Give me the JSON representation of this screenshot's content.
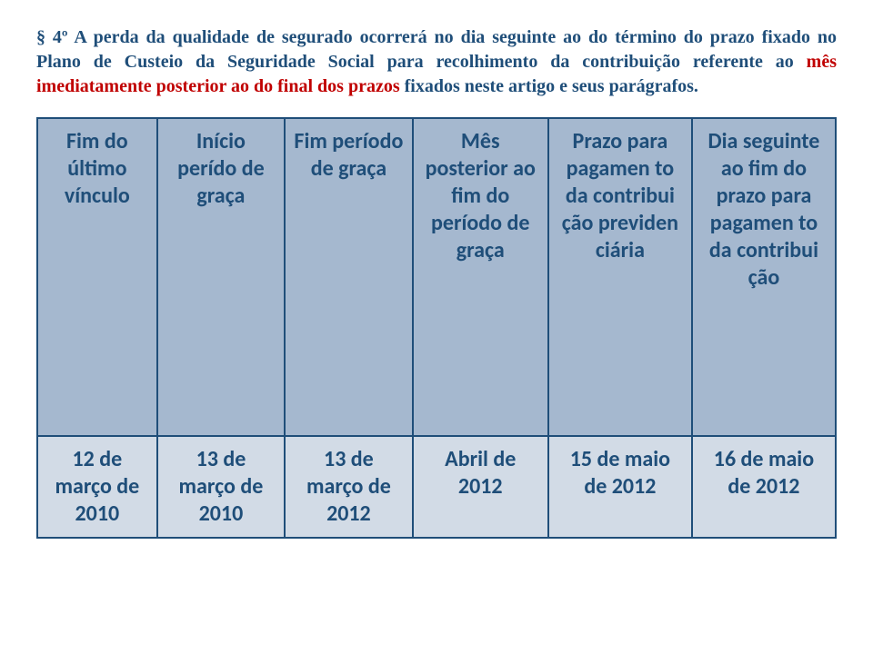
{
  "paragraph": {
    "text": "§ 4º A perda da qualidade de segurado ocorrerá no dia seguinte ao do término do prazo fixado no Plano de Custeio da Seguridade Social para recolhimento da contribuição referente ao ",
    "highlight1": "mês imediatamente posterior ao do final dos prazos",
    "mid": " fixados neste artigo e seus parágrafos.",
    "color": "#1f4e79",
    "highlightColor": "#c00000"
  },
  "table": {
    "borderColor": "#1f4e79",
    "headerBg": "#a5b8cf",
    "dataBg": "#d2dbe6",
    "headerTextColor": "#1f4e79",
    "dataTextColor": "#1f4e79",
    "columns": [
      {
        "label": "Fim do último vínculo",
        "width": "15%"
      },
      {
        "label": "Início perído de graça",
        "width": "16%"
      },
      {
        "label": "Fim período de graça",
        "width": "16%"
      },
      {
        "label": "Mês posterior ao fim do período de graça",
        "width": "17%"
      },
      {
        "label": "Prazo para pagamen to da contribui ção previden ciária",
        "width": "18%"
      },
      {
        "label": "Dia seguinte ao fim do prazo para pagamen to da contribui ção",
        "width": "18%"
      }
    ],
    "rows": [
      [
        "12 de março de 2010",
        "13 de março de 2010",
        "13 de março de 2012",
        "Abril de 2012",
        "15 de maio de 2012",
        "16 de maio de 2012"
      ]
    ]
  }
}
